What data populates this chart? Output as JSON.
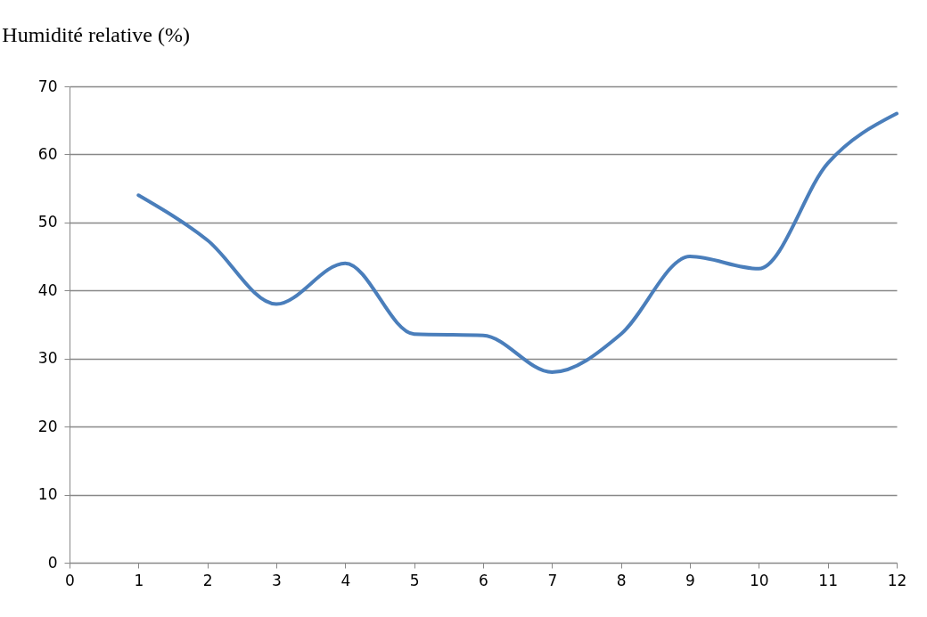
{
  "chart_data": {
    "type": "line",
    "title": "Humidité relative (%)",
    "x": [
      1,
      2,
      3,
      4,
      5,
      6,
      7,
      8,
      9,
      10,
      11,
      12
    ],
    "series": [
      {
        "color": "#4a7ebb",
        "values": [
          54,
          47.4,
          38,
          44,
          33.6,
          33.4,
          28,
          33.6,
          45,
          43.2,
          58.7,
          66
        ]
      }
    ],
    "xlim": [
      0,
      12
    ],
    "xticks": [
      0,
      1,
      2,
      3,
      4,
      5,
      6,
      7,
      8,
      9,
      10,
      11,
      12
    ],
    "ylim": [
      0,
      70
    ],
    "yticks": [
      0,
      10,
      20,
      30,
      40,
      50,
      60,
      70
    ],
    "grid": "y",
    "legend": false,
    "marker": "none",
    "line_style": "solid"
  }
}
